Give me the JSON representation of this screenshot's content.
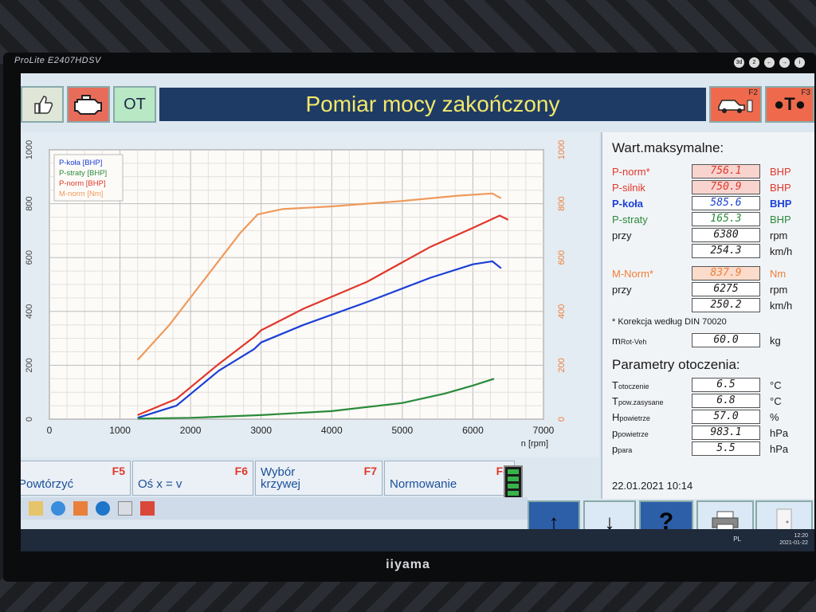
{
  "monitor": {
    "model": "ProLite E2407HDSV",
    "brand": "iiyama",
    "buttons": [
      "3d",
      "2",
      "←",
      "→",
      "i"
    ]
  },
  "header": {
    "title": "Pomiar mocy zakończony",
    "ot_label": "OT",
    "f2_key": "F2",
    "f3_key": "F3",
    "f3_label": "●T●"
  },
  "chart_data": {
    "type": "line",
    "xlabel": "n [rpm]",
    "xlim": [
      0,
      7000
    ],
    "x_ticks": [
      "0",
      "1000",
      "2000",
      "3000",
      "4000",
      "5000",
      "6000",
      "7000"
    ],
    "y_left_ticks": [
      "0",
      "200",
      "400",
      "600",
      "800",
      "1000"
    ],
    "y_right_ticks": [
      "0",
      "200",
      "400",
      "600",
      "800",
      "1000"
    ],
    "ylim": [
      0,
      1000
    ],
    "legend": [
      "P-koła [BHP]",
      "P-straty [BHP]",
      "P-norm [BHP]",
      "M-norm [Nm]"
    ],
    "series": [
      {
        "name": "P-koła [BHP]",
        "color": "#1b3fd6",
        "x": [
          1250,
          1800,
          2400,
          2900,
          3000,
          3600,
          4500,
          5400,
          6000,
          6275,
          6400
        ],
        "y": [
          5,
          50,
          180,
          260,
          285,
          350,
          435,
          525,
          575,
          586,
          560
        ]
      },
      {
        "name": "P-straty [BHP]",
        "color": "#2a8a3a",
        "x": [
          1250,
          2000,
          3000,
          4000,
          5000,
          5600,
          6000,
          6300
        ],
        "y": [
          2,
          5,
          15,
          30,
          60,
          95,
          125,
          150
        ]
      },
      {
        "name": "P-norm [BHP]",
        "color": "#e0372a",
        "x": [
          1250,
          1800,
          2400,
          2900,
          3000,
          3600,
          4500,
          5400,
          6000,
          6380,
          6500
        ],
        "y": [
          15,
          75,
          205,
          305,
          330,
          410,
          510,
          640,
          710,
          756,
          740
        ]
      },
      {
        "name": "M-norm [Nm]",
        "color": "#ef9a5b",
        "x": [
          1250,
          1700,
          2200,
          2700,
          2950,
          3300,
          4000,
          5000,
          5800,
          6275,
          6400
        ],
        "y": [
          220,
          350,
          520,
          690,
          760,
          780,
          790,
          810,
          830,
          838,
          820
        ]
      }
    ]
  },
  "max_values": {
    "title": "Wart.maksymalne:",
    "rows": [
      {
        "label": "P-norm*",
        "value": "756.1",
        "unit": "BHP"
      },
      {
        "label": "P-silnik",
        "value": "750.9",
        "unit": "BHP"
      },
      {
        "label": "P-koła",
        "value": "585.6",
        "unit": "BHP"
      },
      {
        "label": "P-straty",
        "value": "165.3",
        "unit": "BHP"
      },
      {
        "label": "przy",
        "value": "6380",
        "unit": "rpm"
      },
      {
        "label": "",
        "value": "254.3",
        "unit": "km/h"
      }
    ],
    "torque_rows": [
      {
        "label": "M-Norm*",
        "value": "837.9",
        "unit": "Nm"
      },
      {
        "label": "przy",
        "value": "6275",
        "unit": "rpm"
      },
      {
        "label": "",
        "value": "250.2",
        "unit": "km/h"
      }
    ],
    "note": "* Korekcja według DIN 70020",
    "mass": {
      "label": "m",
      "sub": "Rot-Veh",
      "value": "60.0",
      "unit": "kg"
    }
  },
  "ambient": {
    "title": "Parametry otoczenia:",
    "rows": [
      {
        "label": "T",
        "sub": "otoczenie",
        "value": "6.5",
        "unit": "°C"
      },
      {
        "label": "T",
        "sub": "pow.zasysane",
        "value": "6.8",
        "unit": "°C"
      },
      {
        "label": "H",
        "sub": "powietrze",
        "value": "57.0",
        "unit": "%"
      },
      {
        "label": "p",
        "sub": "powietrze",
        "value": "983.1",
        "unit": "hPa"
      },
      {
        "label": "p",
        "sub": "para",
        "value": "5.5",
        "unit": "hPa"
      }
    ]
  },
  "datetime": "22.01.2021   10:14",
  "fkeys": [
    {
      "label": "Powtórzyć",
      "key": "F5"
    },
    {
      "label": "Oś x = v",
      "key": "F6"
    },
    {
      "label": "Wybór\nkrzywej",
      "key": "F7"
    },
    {
      "label": "Normowanie",
      "key": "F8"
    }
  ],
  "nav": {
    "up": "↑",
    "down": "↓",
    "help": "?"
  },
  "tray": {
    "lang": "PL",
    "time": "12:20",
    "date": "2021-01-22"
  }
}
